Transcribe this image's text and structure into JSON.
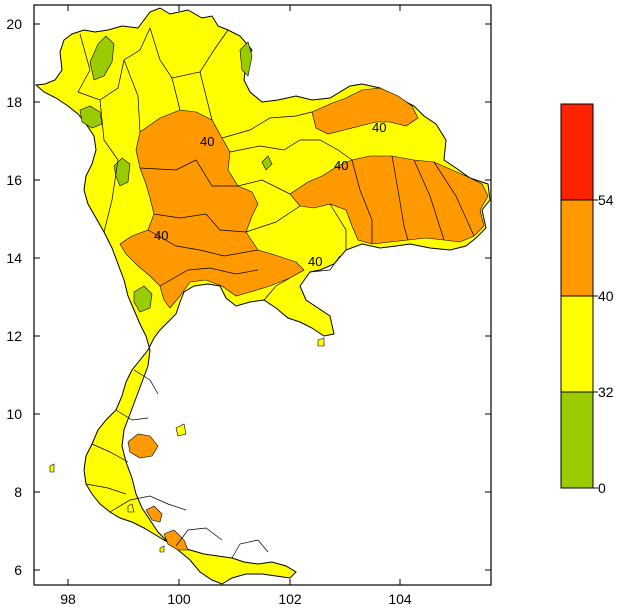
{
  "map": {
    "x_ticks": [
      "98",
      "100",
      "102",
      "104"
    ],
    "y_ticks": [
      "20",
      "18",
      "16",
      "14",
      "12",
      "10",
      "8",
      "6"
    ],
    "contour_labels": [
      "40",
      "40",
      "40",
      "40",
      "40"
    ]
  },
  "legend": {
    "bins": [
      {
        "range": "54+",
        "color": "#ff2200"
      },
      {
        "range": "40-54",
        "color": "#ff9900"
      },
      {
        "range": "32-40",
        "color": "#ffff00"
      },
      {
        "range": "0-32",
        "color": "#99cc00"
      }
    ],
    "tick_labels": [
      "54",
      "40",
      "32",
      "0"
    ]
  },
  "colors": {
    "frame": "#000000",
    "boundary": "#000000",
    "orange": "#ff9900",
    "yellow": "#ffff00",
    "green": "#99cc00",
    "red": "#ff2200"
  }
}
